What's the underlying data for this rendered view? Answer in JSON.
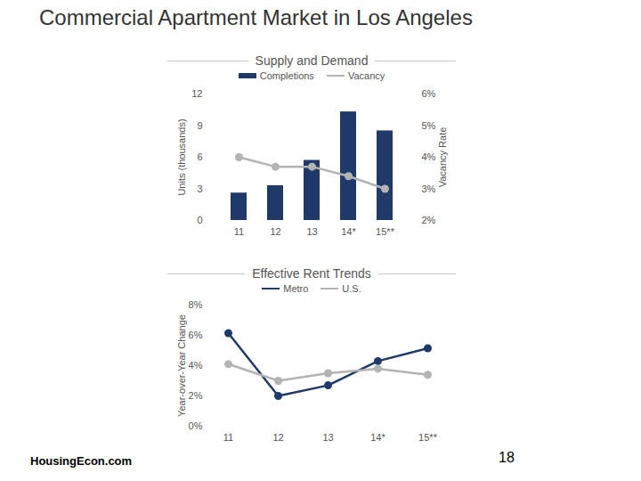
{
  "title": "Commercial Apartment Market in Los Angeles",
  "source": "HousingEcon.com",
  "page_number": "18",
  "chart_data": [
    {
      "type": "bar",
      "title": "Supply and Demand",
      "categories": [
        "11",
        "12",
        "13",
        "14*",
        "15**"
      ],
      "ylabel": "Units (thousands)",
      "y2label": "Vacancy Rate",
      "ylim": [
        0,
        12
      ],
      "yticks": [
        0,
        3,
        6,
        9,
        12
      ],
      "y2lim": [
        2,
        6
      ],
      "y2ticks": [
        {
          "value": 2,
          "label": "2%"
        },
        {
          "value": 3,
          "label": "3%"
        },
        {
          "value": 4,
          "label": "4%"
        },
        {
          "value": 5,
          "label": "5%"
        },
        {
          "value": 6,
          "label": "6%"
        }
      ],
      "grid": false,
      "series": [
        {
          "name": "Completions",
          "type": "bar",
          "color": "#1f3a68",
          "values": [
            2.6,
            3.3,
            5.7,
            10.3,
            8.5
          ]
        },
        {
          "name": "Vacancy",
          "type": "line",
          "axis": "y2",
          "color": "#b3b3b3",
          "marker": "circle",
          "values": [
            4.0,
            3.7,
            3.7,
            3.4,
            3.0
          ]
        }
      ]
    },
    {
      "type": "line",
      "title": "Effective Rent Trends",
      "categories": [
        "11",
        "12",
        "13",
        "14*",
        "15**"
      ],
      "ylabel": "Year-over-Year Change",
      "ylim": [
        0,
        8
      ],
      "yticks": [
        {
          "value": 0,
          "label": "0%"
        },
        {
          "value": 2,
          "label": "2%"
        },
        {
          "value": 4,
          "label": "4%"
        },
        {
          "value": 6,
          "label": "6%"
        },
        {
          "value": 8,
          "label": "8%"
        }
      ],
      "grid": false,
      "series": [
        {
          "name": "Metro",
          "color": "#1f3a68",
          "marker": "circle",
          "values": [
            6.15,
            2.0,
            2.7,
            4.3,
            5.15
          ]
        },
        {
          "name": "U.S.",
          "color": "#b3b3b3",
          "marker": "circle",
          "values": [
            4.1,
            3.0,
            3.5,
            3.8,
            3.4
          ]
        }
      ]
    }
  ]
}
